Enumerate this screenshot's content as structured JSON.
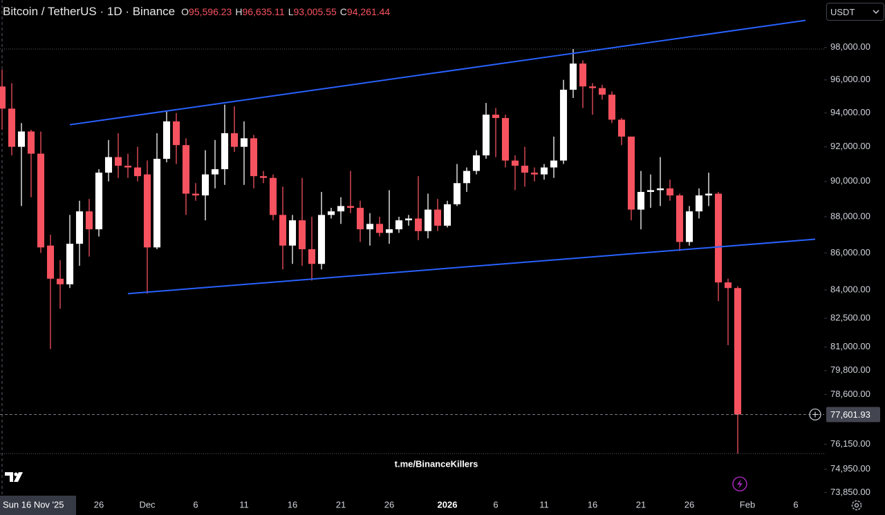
{
  "chart_data": {
    "type": "candlestick",
    "title": "Bitcoin / TetherUS · 1D · Binance",
    "legend_values": [
      {
        "key": "O",
        "value": 95596.23,
        "label": "95,596.23"
      },
      {
        "key": "H",
        "value": 96635.11,
        "label": "96,635.11"
      },
      {
        "key": "L",
        "value": 93005.55,
        "label": "93,005.55"
      },
      {
        "key": "C",
        "value": 94261.44,
        "label": "94,261.44"
      }
    ],
    "currency": "USDT",
    "watermark": "t.me/BinanceKillers",
    "log_scale": true,
    "up_color": "#ffffff",
    "down_color": "#f7525f",
    "trendline_color": "#2962ff",
    "xlim": [
      "2025-11-16",
      "2026-02-08"
    ],
    "ylim": [
      73700,
      101000
    ],
    "yticks": [
      {
        "value": 98000,
        "label": "98,000.00"
      },
      {
        "value": 96000,
        "label": "96,000.00"
      },
      {
        "value": 94000,
        "label": "94,000.00"
      },
      {
        "value": 92000,
        "label": "92,000.00"
      },
      {
        "value": 90000,
        "label": "90,000.00"
      },
      {
        "value": 88000,
        "label": "88,000.00"
      },
      {
        "value": 86000,
        "label": "86,000.00"
      },
      {
        "value": 84000,
        "label": "84,000.00"
      },
      {
        "value": 82500,
        "label": "82,500.00"
      },
      {
        "value": 81000,
        "label": "81,000.00"
      },
      {
        "value": 79800,
        "label": "79,800.00"
      },
      {
        "value": 78600,
        "label": "78,600.00"
      },
      {
        "value": 76150,
        "label": "76,150.00"
      },
      {
        "value": 74950,
        "label": "74,950.00"
      },
      {
        "value": 73850,
        "label": "73,850.00"
      }
    ],
    "xticks": [
      {
        "value": "2025-11-26",
        "label": "26"
      },
      {
        "value": "2025-12-01",
        "label": "Dec"
      },
      {
        "value": "2025-12-06",
        "label": "6"
      },
      {
        "value": "2025-12-11",
        "label": "11"
      },
      {
        "value": "2025-12-16",
        "label": "16"
      },
      {
        "value": "2025-12-21",
        "label": "21"
      },
      {
        "value": "2025-12-26",
        "label": "26"
      },
      {
        "value": "2026-01-01",
        "label": "2026"
      },
      {
        "value": "2026-01-06",
        "label": "6"
      },
      {
        "value": "2026-01-11",
        "label": "11"
      },
      {
        "value": "2026-01-16",
        "label": "16"
      },
      {
        "value": "2026-01-21",
        "label": "21"
      },
      {
        "value": "2026-01-26",
        "label": "26"
      },
      {
        "value": "2026-02-01",
        "label": "Feb"
      },
      {
        "value": "2026-02-06",
        "label": "6"
      }
    ],
    "crosshair": {
      "x": "2025-11-16",
      "label": "Sun 16 Nov '25"
    },
    "price_line": {
      "value": 77601.93,
      "label": "77,601.93"
    },
    "trendlines": [
      {
        "x": [
          "2025-11-23",
          "2026-02-07"
        ],
        "y": [
          93300,
          99700
        ]
      },
      {
        "x": [
          "2025-11-29",
          "2026-02-08"
        ],
        "y": [
          83800,
          86750
        ]
      }
    ],
    "x": [
      "2025-11-16",
      "2025-11-17",
      "2025-11-18",
      "2025-11-19",
      "2025-11-20",
      "2025-11-21",
      "2025-11-22",
      "2025-11-23",
      "2025-11-24",
      "2025-11-25",
      "2025-11-26",
      "2025-11-27",
      "2025-11-28",
      "2025-11-29",
      "2025-11-30",
      "2025-12-01",
      "2025-12-02",
      "2025-12-03",
      "2025-12-04",
      "2025-12-05",
      "2025-12-06",
      "2025-12-07",
      "2025-12-08",
      "2025-12-09",
      "2025-12-10",
      "2025-12-11",
      "2025-12-12",
      "2025-12-13",
      "2025-12-14",
      "2025-12-15",
      "2025-12-16",
      "2025-12-17",
      "2025-12-18",
      "2025-12-19",
      "2025-12-20",
      "2025-12-21",
      "2025-12-22",
      "2025-12-23",
      "2025-12-24",
      "2025-12-25",
      "2025-12-26",
      "2025-12-27",
      "2025-12-28",
      "2025-12-29",
      "2025-12-30",
      "2025-12-31",
      "2026-01-01",
      "2026-01-02",
      "2026-01-03",
      "2026-01-04",
      "2026-01-05",
      "2026-01-06",
      "2026-01-07",
      "2026-01-08",
      "2026-01-09",
      "2026-01-10",
      "2026-01-11",
      "2026-01-12",
      "2026-01-13",
      "2026-01-14",
      "2026-01-15",
      "2026-01-16",
      "2026-01-17",
      "2026-01-18",
      "2026-01-19",
      "2026-01-20",
      "2026-01-21",
      "2026-01-22",
      "2026-01-23",
      "2026-01-24",
      "2026-01-25",
      "2026-01-26",
      "2026-01-27",
      "2026-01-28",
      "2026-01-29",
      "2026-01-30",
      "2026-01-31"
    ],
    "open": [
      95596.23,
      94260,
      92000,
      92900,
      91600,
      86400,
      84600,
      84300,
      86500,
      88300,
      87300,
      90500,
      91400,
      90900,
      90800,
      90400,
      86300,
      91300,
      93500,
      92100,
      89300,
      89200,
      90400,
      90700,
      92800,
      92000,
      92500,
      90300,
      90200,
      88100,
      86400,
      87800,
      86200,
      85400,
      88100,
      88300,
      88600,
      88500,
      87300,
      87600,
      87100,
      87300,
      87800,
      87900,
      87200,
      88400,
      87500,
      88700,
      89900,
      90600,
      91500,
      93900,
      93700,
      91200,
      90900,
      90500,
      90400,
      90800,
      91200,
      95400,
      97000,
      95600,
      95500,
      95100,
      93600,
      92600,
      88400,
      89400,
      89500,
      89600,
      89200,
      86600,
      88300,
      89200,
      89300,
      84400,
      84100
    ],
    "high": [
      96635.11,
      95800,
      93400,
      93000,
      92900,
      87000,
      85600,
      88100,
      88900,
      89000,
      90700,
      92400,
      92800,
      91600,
      92000,
      91200,
      92800,
      94100,
      94000,
      92500,
      89900,
      91800,
      92400,
      94500,
      94400,
      93500,
      92700,
      90600,
      90400,
      89700,
      88100,
      90200,
      88000,
      89400,
      88500,
      89100,
      90600,
      88900,
      88200,
      88000,
      89500,
      88000,
      88100,
      90300,
      89300,
      89000,
      88900,
      91000,
      90800,
      91800,
      94600,
      94300,
      93900,
      91500,
      92000,
      90800,
      91000,
      92600,
      96000,
      97900,
      97200,
      95800,
      95700,
      95300,
      93700,
      92600,
      90600,
      90400,
      91400,
      90100,
      89300,
      88600,
      89600,
      90500,
      89400,
      84600,
      84200
    ],
    "low": [
      93005.55,
      91500,
      88600,
      89100,
      86000,
      80900,
      83000,
      84100,
      85300,
      85800,
      86900,
      90000,
      90200,
      90200,
      90000,
      83800,
      86200,
      91100,
      91000,
      88100,
      88900,
      87800,
      89600,
      89800,
      91700,
      89800,
      89600,
      89900,
      87800,
      85100,
      85400,
      85300,
      84500,
      85100,
      87900,
      87600,
      88200,
      86600,
      86400,
      86900,
      86500,
      87100,
      87500,
      86700,
      86800,
      87200,
      87400,
      88600,
      89400,
      90400,
      91300,
      91400,
      90800,
      89500,
      89700,
      90000,
      90100,
      90200,
      91000,
      94900,
      94300,
      93900,
      94800,
      93400,
      92100,
      87800,
      87300,
      88500,
      88600,
      88900,
      86100,
      86400,
      87900,
      88600,
      83400,
      81100,
      75700
    ],
    "close": [
      94261.44,
      92000,
      92900,
      91600,
      86300,
      84600,
      84300,
      86500,
      88300,
      87300,
      90500,
      91400,
      90900,
      90800,
      90300,
      86300,
      91300,
      93500,
      92100,
      89300,
      89200,
      90400,
      90700,
      92800,
      92000,
      92500,
      90300,
      90200,
      88100,
      86400,
      87800,
      86200,
      85400,
      88100,
      88300,
      88600,
      88500,
      87300,
      87600,
      87100,
      87300,
      87800,
      87900,
      87200,
      88400,
      87500,
      88700,
      89900,
      90600,
      91500,
      93900,
      93700,
      91200,
      90900,
      90500,
      90400,
      90800,
      91200,
      95400,
      97000,
      95600,
      95500,
      95100,
      93600,
      92600,
      88400,
      89400,
      89500,
      89600,
      89200,
      86600,
      88300,
      89200,
      89300,
      84400,
      84100,
      77601.93
    ]
  }
}
